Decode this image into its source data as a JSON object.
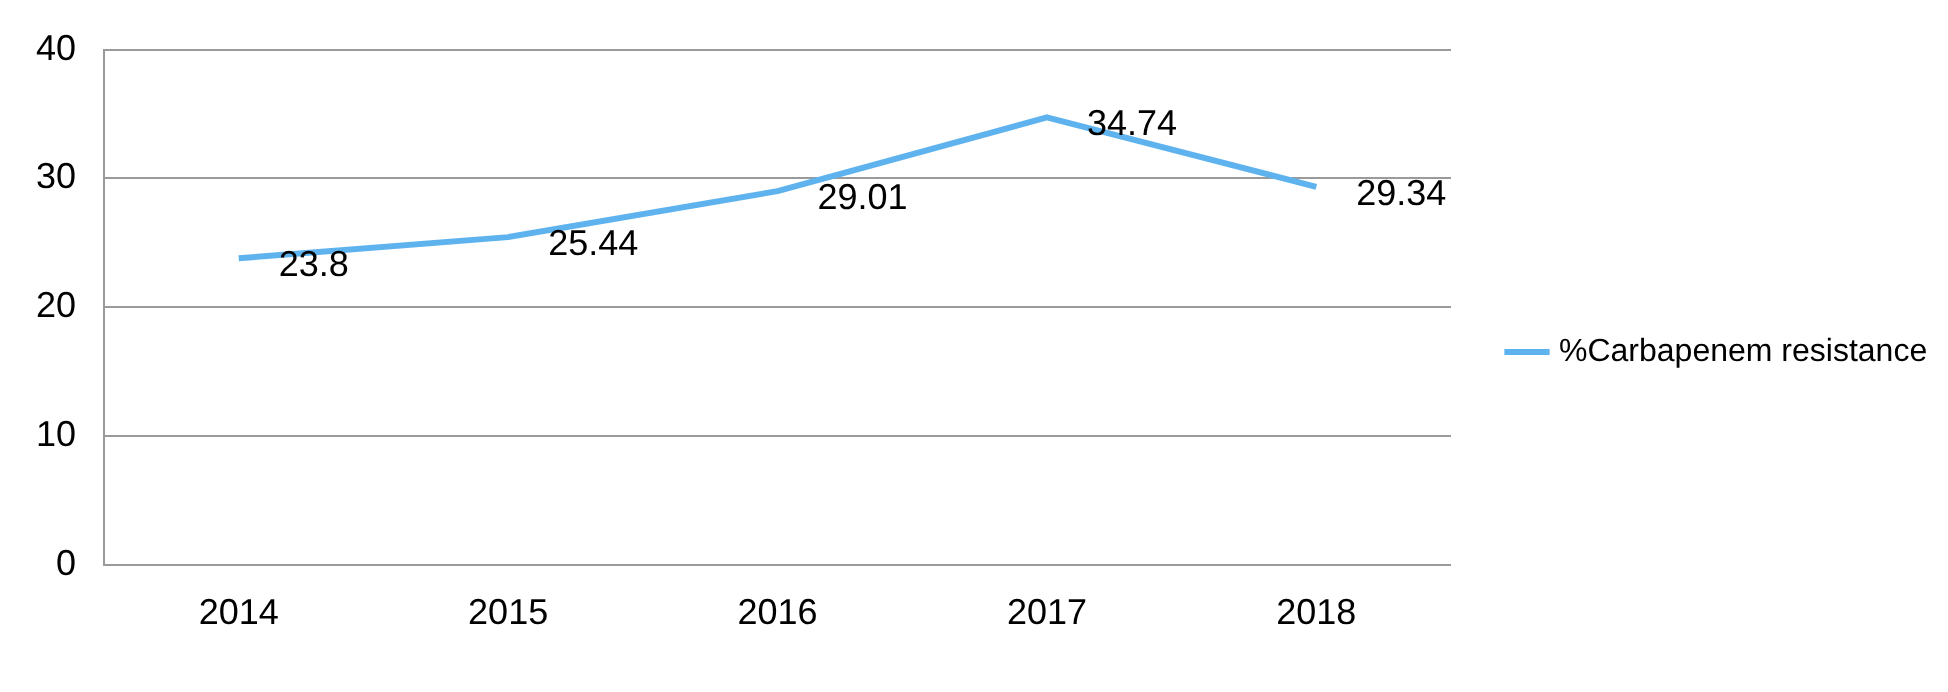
{
  "chart_data": {
    "type": "line",
    "categories": [
      "2014",
      "2015",
      "2016",
      "2017",
      "2018"
    ],
    "series": [
      {
        "name": "%Carbapenem resistance",
        "color": "#5eb3ee",
        "values": [
          23.8,
          25.44,
          29.01,
          34.74,
          29.34
        ]
      }
    ],
    "ylim": [
      0,
      40
    ],
    "yticks": [
      0,
      10,
      20,
      30,
      40
    ],
    "grid": "y",
    "legend": "right",
    "data_labels": true,
    "marker": "none"
  }
}
